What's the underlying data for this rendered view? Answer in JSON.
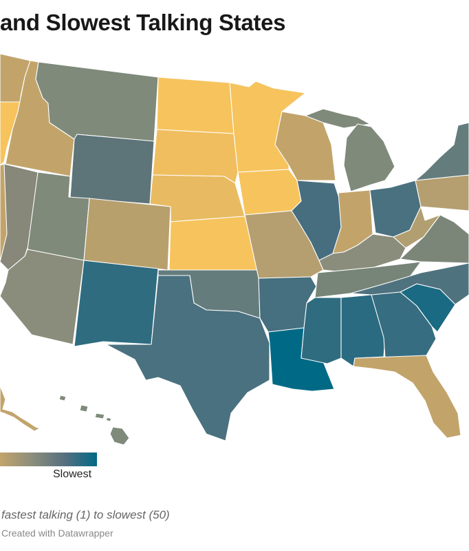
{
  "header": {
    "title": "and Slowest Talking States"
  },
  "colors": {
    "fastest": "#f6c35d",
    "mid": "#7f8a7a",
    "slowest": "#006a86",
    "border": "#ffffff"
  },
  "legend": {
    "slow_label": "Slowest",
    "gradient": [
      "#c2a46b",
      "#8b8d7c",
      "#566f7f",
      "#006a86"
    ]
  },
  "footer": {
    "note": "fastest talking (1) to slowest (50)",
    "credit": "Created with Datawrapper"
  },
  "states": [
    {
      "name": "washington-region",
      "fill": "#c2a46b"
    },
    {
      "name": "oregon",
      "fill": "#f6c35d"
    },
    {
      "name": "california",
      "fill": "#c2a46b"
    },
    {
      "name": "idaho",
      "fill": "#c2a46b"
    },
    {
      "name": "nevada",
      "fill": "#87877a"
    },
    {
      "name": "montana",
      "fill": "#7f8a7a"
    },
    {
      "name": "wyoming",
      "fill": "#5d7479"
    },
    {
      "name": "utah",
      "fill": "#7f8a7a"
    },
    {
      "name": "arizona",
      "fill": "#8b8d7c"
    },
    {
      "name": "colorado",
      "fill": "#b8a06d"
    },
    {
      "name": "new-mexico",
      "fill": "#2f6c80"
    },
    {
      "name": "north-dakota",
      "fill": "#f6c35d"
    },
    {
      "name": "south-dakota",
      "fill": "#f0be5f"
    },
    {
      "name": "nebraska",
      "fill": "#e8bb62"
    },
    {
      "name": "kansas",
      "fill": "#f6c35d"
    },
    {
      "name": "oklahoma",
      "fill": "#657c7d"
    },
    {
      "name": "texas",
      "fill": "#4a717f"
    },
    {
      "name": "minnesota",
      "fill": "#f6c35d"
    },
    {
      "name": "iowa",
      "fill": "#f6c35d"
    },
    {
      "name": "missouri",
      "fill": "#b59f70"
    },
    {
      "name": "arkansas",
      "fill": "#466f7f"
    },
    {
      "name": "louisiana",
      "fill": "#006a86"
    },
    {
      "name": "wisconsin",
      "fill": "#c2a46b"
    },
    {
      "name": "illinois",
      "fill": "#476e7f"
    },
    {
      "name": "michigan",
      "fill": "#7f8a7a"
    },
    {
      "name": "upper-michigan",
      "fill": "#7f8a7a"
    },
    {
      "name": "indiana",
      "fill": "#c2a46b"
    },
    {
      "name": "ohio",
      "fill": "#4a7180"
    },
    {
      "name": "kentucky",
      "fill": "#8b8d7c"
    },
    {
      "name": "tennessee",
      "fill": "#778579"
    },
    {
      "name": "mississippi",
      "fill": "#2f6c80"
    },
    {
      "name": "alabama",
      "fill": "#2a6b81"
    },
    {
      "name": "georgia",
      "fill": "#376d80"
    },
    {
      "name": "florida",
      "fill": "#c2a46b"
    },
    {
      "name": "south-carolina",
      "fill": "#1a6a83"
    },
    {
      "name": "north-carolina",
      "fill": "#4f727f"
    },
    {
      "name": "virginia",
      "fill": "#7b8678"
    },
    {
      "name": "west-virginia",
      "fill": "#b29f71"
    },
    {
      "name": "pennsylvania",
      "fill": "#b59f70"
    },
    {
      "name": "new-york",
      "fill": "#657c7d"
    },
    {
      "name": "alaska",
      "fill": "#c2a46b"
    },
    {
      "name": "hawaii",
      "fill": "#7f8a7a"
    }
  ]
}
